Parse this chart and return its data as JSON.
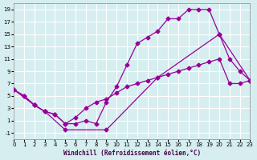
{
  "background_color": "#d6eef0",
  "grid_color": "#ffffff",
  "line_color": "#990099",
  "xlabel": "Windchill (Refroidissement éolien,°C)",
  "xlim": [
    0,
    23
  ],
  "ylim": [
    -2,
    20
  ],
  "xticks": [
    0,
    1,
    2,
    3,
    4,
    5,
    6,
    7,
    8,
    9,
    10,
    11,
    12,
    13,
    14,
    15,
    16,
    17,
    18,
    19,
    20,
    21,
    22,
    23
  ],
  "yticks": [
    -1,
    1,
    3,
    5,
    7,
    9,
    11,
    13,
    15,
    17,
    19
  ],
  "line1_x": [
    0,
    1,
    2,
    3,
    4,
    5,
    6,
    7,
    8,
    9,
    10,
    11,
    12,
    13,
    14,
    15,
    16,
    17,
    18,
    19,
    20,
    21,
    22,
    23
  ],
  "line1_y": [
    6,
    5,
    3.5,
    2.5,
    2,
    0.5,
    0.5,
    1,
    0.5,
    4,
    6.5,
    10,
    13.5,
    14.5,
    15.5,
    17.5,
    17.5,
    19,
    19,
    19,
    15,
    11,
    9,
    7.5
  ],
  "line2_x": [
    0,
    1,
    2,
    3,
    4,
    5,
    6,
    7,
    8,
    9,
    10,
    11,
    12,
    13,
    14,
    15,
    16,
    17,
    18,
    19,
    20,
    21,
    22,
    23
  ],
  "line2_y": [
    6,
    5,
    3.5,
    2.5,
    2,
    0.5,
    1.5,
    3,
    4,
    4.5,
    5.5,
    6.5,
    7,
    7.5,
    8,
    8.5,
    9,
    9.5,
    10,
    10.5,
    11,
    7,
    7,
    7.5
  ],
  "line3_x": [
    0,
    2,
    3,
    5,
    9,
    14,
    20,
    23
  ],
  "line3_y": [
    6,
    3.5,
    2.5,
    -0.5,
    -0.5,
    8,
    15,
    7.5
  ]
}
